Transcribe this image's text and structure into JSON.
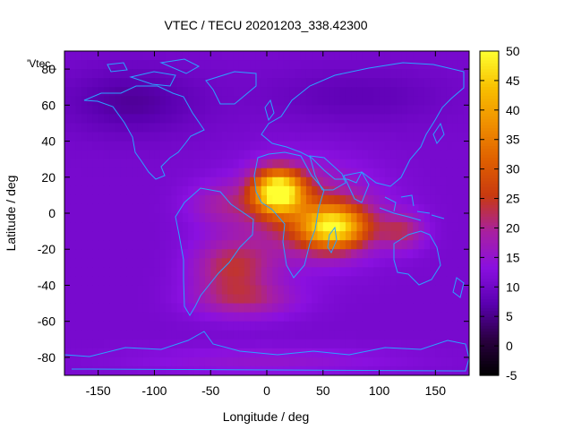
{
  "chart_data": {
    "type": "heatmap",
    "title": "VTEC / TECU 20201203_338.42300",
    "xlabel": "Longitude / deg",
    "ylabel": "Latitude / deg",
    "key_label": "'Vtec_",
    "xlim": [
      -180,
      180
    ],
    "ylim": [
      -90,
      90
    ],
    "xticks": [
      -150,
      -100,
      -50,
      0,
      50,
      100,
      150
    ],
    "yticks": [
      -80,
      -60,
      -40,
      -20,
      0,
      20,
      40,
      60,
      80
    ],
    "colorbar": {
      "range": [
        -5,
        50
      ],
      "ticks": [
        -5,
        0,
        5,
        10,
        15,
        20,
        25,
        30,
        35,
        40,
        45,
        50
      ],
      "palette": [
        "#000000",
        "#2a0040",
        "#5a00b0",
        "#8a10e0",
        "#a820a0",
        "#c83a10",
        "#e06000",
        "#f09000",
        "#f8c000",
        "#ffff30"
      ]
    },
    "background_level": 11,
    "peaks": [
      {
        "lon": 10,
        "lat": 12,
        "amp": 38,
        "slon": 22,
        "slat": 12
      },
      {
        "lon": 60,
        "lat": -8,
        "amp": 31,
        "slon": 30,
        "slat": 12
      },
      {
        "lon": 35,
        "lat": 0,
        "amp": 12,
        "slon": 60,
        "slat": 25
      },
      {
        "lon": -30,
        "lat": -30,
        "amp": 12,
        "slon": 35,
        "slat": 15
      },
      {
        "lon": -20,
        "lat": -48,
        "amp": 9,
        "slon": 45,
        "slat": 10
      },
      {
        "lon": 120,
        "lat": -10,
        "amp": 10,
        "slon": 20,
        "slat": 10
      },
      {
        "lon": -40,
        "lat": 5,
        "amp": 6,
        "slon": 30,
        "slat": 12
      },
      {
        "lon": -120,
        "lat": 62,
        "amp": -5,
        "slon": 60,
        "slat": 18
      },
      {
        "lon": 80,
        "lat": 65,
        "amp": -3,
        "slon": 80,
        "slat": 15
      },
      {
        "lon": 0,
        "lat": -82,
        "amp": 4,
        "slon": 120,
        "slat": 8
      }
    ]
  }
}
